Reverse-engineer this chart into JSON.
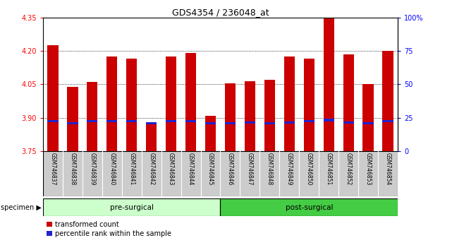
{
  "title": "GDS4354 / 236048_at",
  "samples": [
    "GSM746837",
    "GSM746838",
    "GSM746839",
    "GSM746840",
    "GSM746841",
    "GSM746842",
    "GSM746843",
    "GSM746844",
    "GSM746845",
    "GSM746846",
    "GSM746847",
    "GSM746848",
    "GSM746849",
    "GSM746850",
    "GSM746851",
    "GSM746852",
    "GSM746853",
    "GSM746854"
  ],
  "red_values": [
    4.225,
    4.04,
    4.06,
    4.175,
    4.165,
    3.88,
    4.175,
    4.19,
    3.91,
    4.055,
    4.065,
    4.07,
    4.175,
    4.165,
    4.345,
    4.185,
    4.05,
    4.2
  ],
  "blue_values": [
    3.885,
    3.875,
    3.885,
    3.885,
    3.885,
    3.875,
    3.885,
    3.885,
    3.875,
    3.875,
    3.88,
    3.875,
    3.88,
    3.885,
    3.89,
    3.88,
    3.875,
    3.885
  ],
  "ymin": 3.75,
  "ymax": 4.35,
  "yticks": [
    3.75,
    3.9,
    4.05,
    4.2,
    4.35
  ],
  "y2ticks": [
    0,
    25,
    50,
    75,
    100
  ],
  "y2labels": [
    "0",
    "25",
    "50",
    "75",
    "100%"
  ],
  "bar_color": "#cc0000",
  "blue_color": "#2222cc",
  "pre_surgical_count": 9,
  "post_surgical_count": 9,
  "pre_label": "pre-surgical",
  "post_label": "post-surgical",
  "specimen_label": "specimen",
  "legend_red": "transformed count",
  "legend_blue": "percentile rank within the sample",
  "bar_width": 0.55,
  "pre_bg": "#ccffcc",
  "post_bg": "#44cc44",
  "tick_label_bg": "#cccccc",
  "grid_lines": [
    3.9,
    4.05,
    4.2
  ]
}
